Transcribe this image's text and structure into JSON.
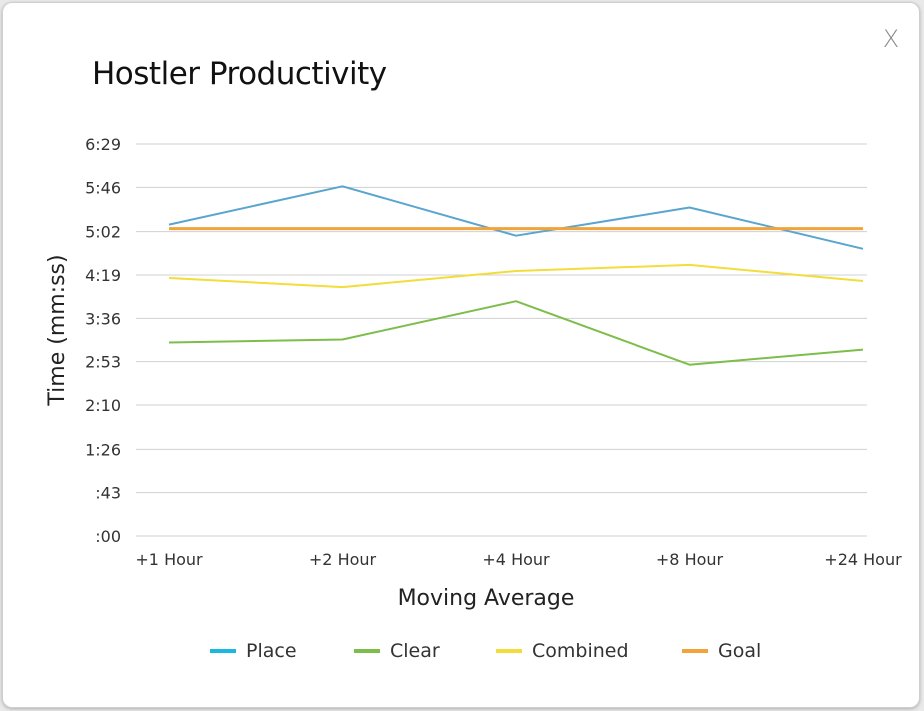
{
  "dialog": {
    "close_label": "X"
  },
  "chart_data": {
    "type": "line",
    "title": "Hostler Productivity",
    "xlabel": "Moving Average",
    "ylabel": "Time (mm:ss)",
    "categories": [
      "+1 Hour",
      "+2 Hour",
      "+4 Hour",
      "+8 Hour",
      "+24 Hour"
    ],
    "y_unit": "seconds",
    "yticks": [
      0,
      43,
      86,
      130,
      173,
      216,
      259,
      302,
      346,
      389
    ],
    "ytick_labels": [
      ":00",
      ":43",
      "1:26",
      "2:10",
      "2:53",
      "3:36",
      "4:19",
      "5:02",
      "5:46",
      "6:29"
    ],
    "ylim": [
      0,
      389
    ],
    "grid": true,
    "legend_position": "bottom",
    "series": [
      {
        "name": "Place",
        "color": "#5aa5cf",
        "values": [
          309,
          347,
          298,
          326,
          285
        ]
      },
      {
        "name": "Clear",
        "color": "#7dbd4a",
        "values": [
          192,
          195,
          233,
          170,
          185
        ]
      },
      {
        "name": "Combined",
        "color": "#f2dd3a",
        "values": [
          256,
          247,
          263,
          269,
          253
        ]
      },
      {
        "name": "Goal",
        "color": "#f2a33a",
        "values": [
          305,
          305,
          305,
          305,
          305
        ]
      }
    ],
    "legend_swatch_colors": [
      "#1ab8e0",
      "#7dbd4a",
      "#f2dd3a",
      "#f2a33a"
    ]
  }
}
